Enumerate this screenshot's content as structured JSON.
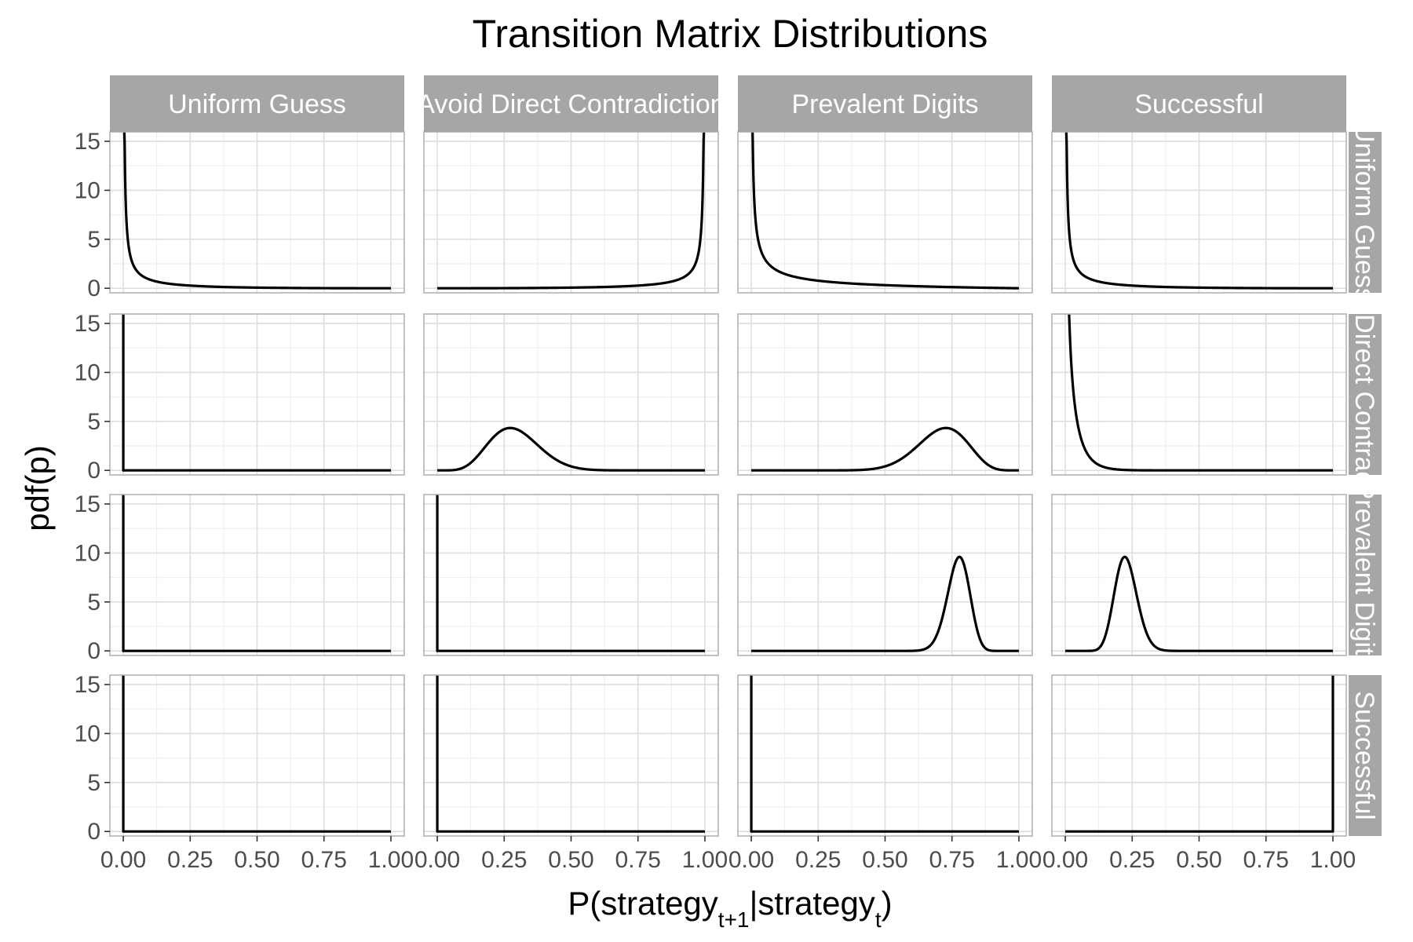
{
  "chart_data": {
    "type": "line",
    "title": "Transition Matrix Distributions",
    "ylabel": "pdf(p)",
    "xlabel": {
      "parts": [
        {
          "text": "P(strategy",
          "sub": false
        },
        {
          "text": "t+1",
          "sub": true
        },
        {
          "text": "|strategy",
          "sub": false
        },
        {
          "text": "t",
          "sub": true
        },
        {
          "text": ")",
          "sub": false
        }
      ]
    },
    "xlim": [
      0,
      1
    ],
    "ylim": [
      0,
      15.5
    ],
    "x_ticks": [
      "0.00",
      "0.25",
      "0.50",
      "0.75",
      "1.00"
    ],
    "y_ticks": [
      "0",
      "5",
      "10",
      "15"
    ],
    "grid": true,
    "col_facets": [
      "Uniform Guess",
      "Avoid Direct Contradiction",
      "Prevalent Digits",
      "Successful"
    ],
    "row_facets": [
      "Uniform Guess",
      "Avoid Direct Contradiction",
      "Prevalent Digits",
      "Successful"
    ],
    "panels": [
      [
        {
          "shape": "beta",
          "a": 0.12,
          "b": 3.0
        },
        {
          "shape": "beta",
          "a": 3.0,
          "b": 0.12
        },
        {
          "shape": "beta",
          "a": 0.3,
          "b": 2.0
        },
        {
          "shape": "beta",
          "a": 0.12,
          "b": 3.0
        }
      ],
      [
        {
          "shape": "spike",
          "at": 0
        },
        {
          "shape": "beta",
          "a": 7.0,
          "b": 17.0
        },
        {
          "shape": "beta",
          "a": 17.0,
          "b": 7.0
        },
        {
          "shape": "beta",
          "a": 0.5,
          "b": 20.0
        }
      ],
      [
        {
          "shape": "spike",
          "at": 0
        },
        {
          "shape": "spike",
          "at": 0
        },
        {
          "shape": "beta",
          "a": 78.0,
          "b": 23.0
        },
        {
          "shape": "beta",
          "a": 23.0,
          "b": 78.0
        }
      ],
      [
        {
          "shape": "spike",
          "at": 0
        },
        {
          "shape": "spike",
          "at": 0
        },
        {
          "shape": "spike",
          "at": 0
        },
        {
          "shape": "spike",
          "at": 1
        }
      ]
    ],
    "colors": {
      "line": "#000000",
      "strip": "#a6a6a6",
      "panel_border": "#b3b3b3",
      "grid_major": "#dedede",
      "grid_minor": "#efefef"
    }
  }
}
